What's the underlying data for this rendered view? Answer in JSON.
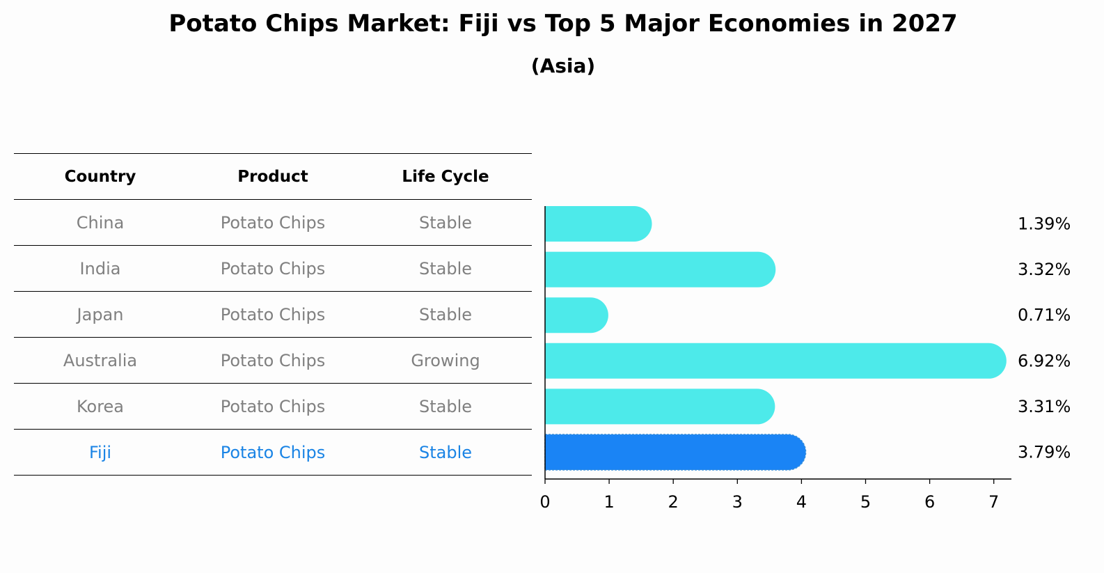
{
  "title": "Potato Chips Market: Fiji vs Top 5 Major Economies in 2027",
  "subtitle": "(Asia)",
  "table": {
    "headers": [
      "Country",
      "Product",
      "Life Cycle"
    ],
    "rows": [
      [
        "China",
        "Potato Chips",
        "Stable"
      ],
      [
        "India",
        "Potato Chips",
        "Stable"
      ],
      [
        "Japan",
        "Potato Chips",
        "Stable"
      ],
      [
        "Australia",
        "Potato Chips",
        "Growing"
      ],
      [
        "Korea",
        "Potato Chips",
        "Stable"
      ],
      [
        "Fiji",
        "Potato Chips",
        "Stable"
      ]
    ],
    "highlight_row": 5
  },
  "colors": {
    "bar": "#4deaea",
    "highlight_bar": "#1a84f5",
    "highlight_text": "#1a84e5",
    "text_muted": "#808080"
  },
  "chart_data": {
    "type": "bar",
    "orientation": "horizontal",
    "categories": [
      "China",
      "India",
      "Japan",
      "Australia",
      "Korea",
      "Fiji"
    ],
    "values": [
      1.39,
      3.32,
      0.71,
      6.92,
      3.31,
      3.79
    ],
    "value_labels": [
      "1.39%",
      "3.32%",
      "0.71%",
      "6.92%",
      "3.31%",
      "3.79%"
    ],
    "highlight_category": "Fiji",
    "xlim": [
      0,
      7.3
    ],
    "xticks": [
      0,
      1,
      2,
      3,
      4,
      5,
      6,
      7
    ],
    "xlabel": "",
    "ylabel": "",
    "grid": false
  }
}
